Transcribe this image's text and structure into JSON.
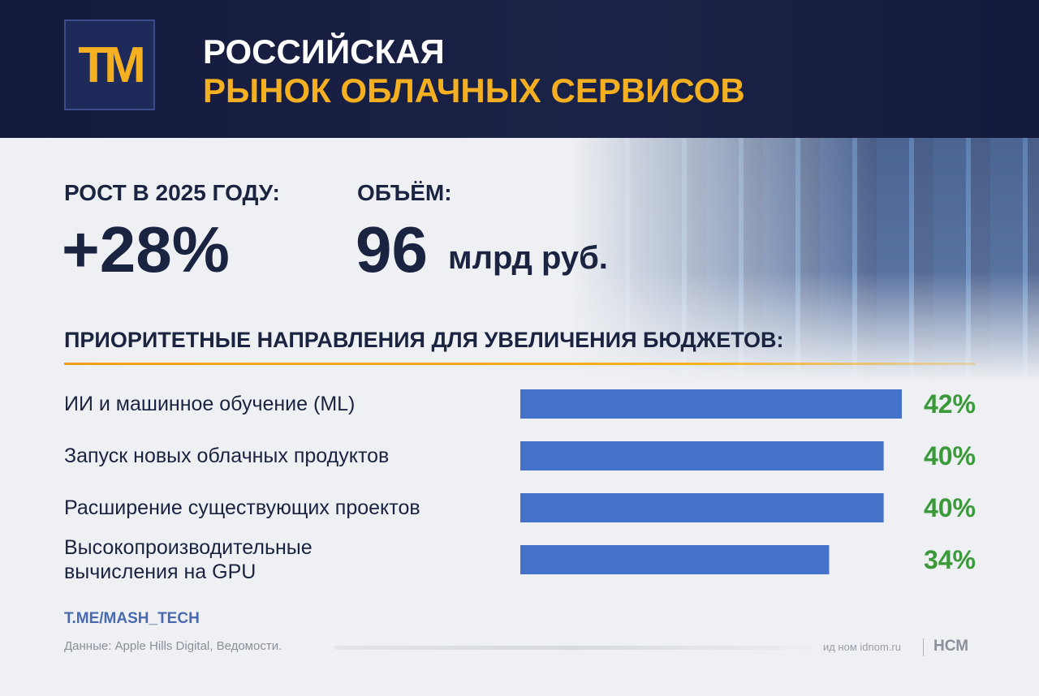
{
  "header": {
    "logo": "ТМ",
    "title_line1": "РОССИЙСКАЯ",
    "title_line2": "РЫНОК ОБЛАЧНЫХ СЕРВИСОВ"
  },
  "stats": [
    {
      "label": "РОСТ В 2025 ГОДУ:",
      "value": "+28%"
    },
    {
      "label": "ОБЪЁМ:",
      "value": "96",
      "unit": "млрд руб."
    }
  ],
  "chart_data": {
    "type": "bar",
    "orientation": "horizontal",
    "title": "ПРИОРИТЕТНЫЕ НАПРАВЛЕНИЯ ДЛЯ УВЕЛИЧЕНИЯ БЮДЖЕТОВ:",
    "categories": [
      "ИИ и машинное обучение (ML)",
      "Запуск новых облачных продуктов",
      "Расширение существующих проектов",
      "Высокопроизводительные вычисления на GPU"
    ],
    "values": [
      42,
      40,
      40,
      34
    ],
    "value_labels": [
      "42%",
      "40%",
      "40%",
      "34%"
    ],
    "color": "#4472c8",
    "value_label_color": "#3a9a3a"
  },
  "footer": {
    "link": "T.ME/MASH_TECH",
    "source": "Данные: Apple Hills Digital, Ведомости.",
    "watermark": "ид ном idnom.ru",
    "brand": "НСМ"
  }
}
